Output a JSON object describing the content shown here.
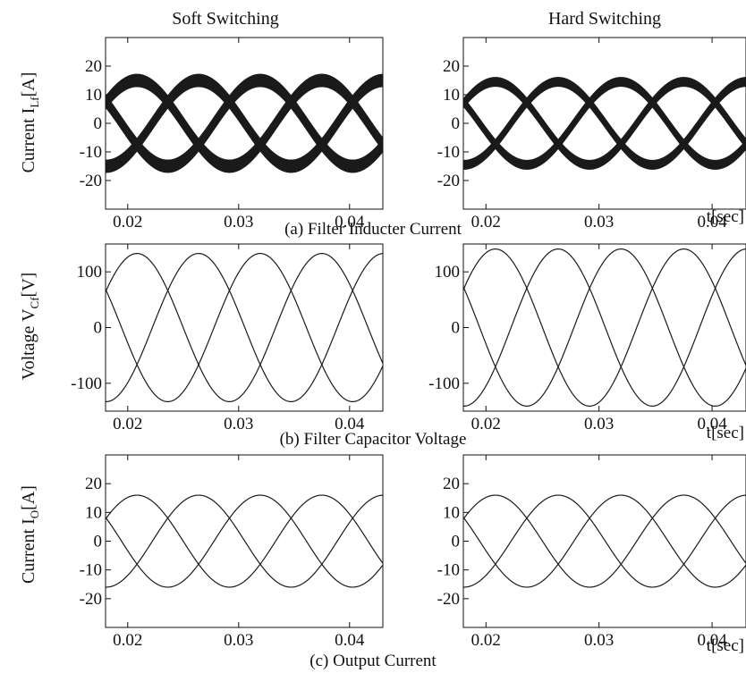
{
  "column_titles": [
    "Soft Switching",
    "Hard Switching"
  ],
  "captions": {
    "a": "(a)  Filter Inducter Current",
    "b": "(b)  Filter Capacitor Voltage",
    "c": "(c)  Output Current"
  },
  "time_unit_label": "t[sec]",
  "y_labels": {
    "a": {
      "main": "Current I",
      "sub": "Lf",
      "unit": "[A]"
    },
    "b": {
      "main": "Voltage V",
      "sub": "Cf",
      "unit": "[V]"
    },
    "c": {
      "main": "Current I",
      "sub": "O",
      "unit": "[A]"
    }
  },
  "chart_data": [
    {
      "type": "line",
      "panel": "a-soft",
      "xlim": [
        0.018,
        0.043
      ],
      "ylim": [
        -30,
        30
      ],
      "xticks": [
        "0.02",
        "0.03",
        "0.04"
      ],
      "yticks": [
        "20",
        "10",
        "0",
        "-10",
        "-20"
      ],
      "amplitude": 15,
      "ripple": 2.2,
      "frequency_hz": 60,
      "phase_deg": [
        0,
        -120,
        120
      ],
      "phases": 3
    },
    {
      "type": "line",
      "panel": "a-hard",
      "xlim": [
        0.018,
        0.043
      ],
      "ylim": [
        -30,
        30
      ],
      "xticks": [
        "0.02",
        "0.03",
        "0.04"
      ],
      "yticks": [
        "20",
        "10",
        "0",
        "-10",
        "-20"
      ],
      "amplitude": 14.5,
      "ripple": 1.6,
      "frequency_hz": 60,
      "phase_deg": [
        0,
        -120,
        120
      ],
      "phases": 3
    },
    {
      "type": "line",
      "panel": "b-soft",
      "xlim": [
        0.018,
        0.043
      ],
      "ylim": [
        -150,
        150
      ],
      "xticks": [
        "0.02",
        "0.03",
        "0.04"
      ],
      "yticks": [
        "100",
        "0",
        "-100"
      ],
      "amplitude": 133,
      "ripple": 0,
      "frequency_hz": 60,
      "phase_deg": [
        0,
        -120,
        120
      ],
      "phases": 3
    },
    {
      "type": "line",
      "panel": "b-hard",
      "xlim": [
        0.018,
        0.043
      ],
      "ylim": [
        -150,
        150
      ],
      "xticks": [
        "0.02",
        "0.03",
        "0.04"
      ],
      "yticks": [
        "100",
        "0",
        "-100"
      ],
      "amplitude": 141,
      "ripple": 0,
      "frequency_hz": 60,
      "phase_deg": [
        0,
        -120,
        120
      ],
      "phases": 3
    },
    {
      "type": "line",
      "panel": "c-soft",
      "xlim": [
        0.018,
        0.043
      ],
      "ylim": [
        -30,
        30
      ],
      "xticks": [
        "0.02",
        "0.03",
        "0.04"
      ],
      "yticks": [
        "20",
        "10",
        "0",
        "-10",
        "-20"
      ],
      "amplitude": 16,
      "ripple": 0,
      "frequency_hz": 60,
      "phase_deg": [
        0,
        -120,
        120
      ],
      "phases": 3
    },
    {
      "type": "line",
      "panel": "c-hard",
      "xlim": [
        0.018,
        0.043
      ],
      "ylim": [
        -30,
        30
      ],
      "xticks": [
        "0.02",
        "0.03",
        "0.04"
      ],
      "yticks": [
        "20",
        "10",
        "0",
        "-10",
        "-20"
      ],
      "amplitude": 16,
      "ripple": 0,
      "frequency_hz": 60,
      "phase_deg": [
        0,
        -120,
        120
      ],
      "phases": 3
    }
  ]
}
